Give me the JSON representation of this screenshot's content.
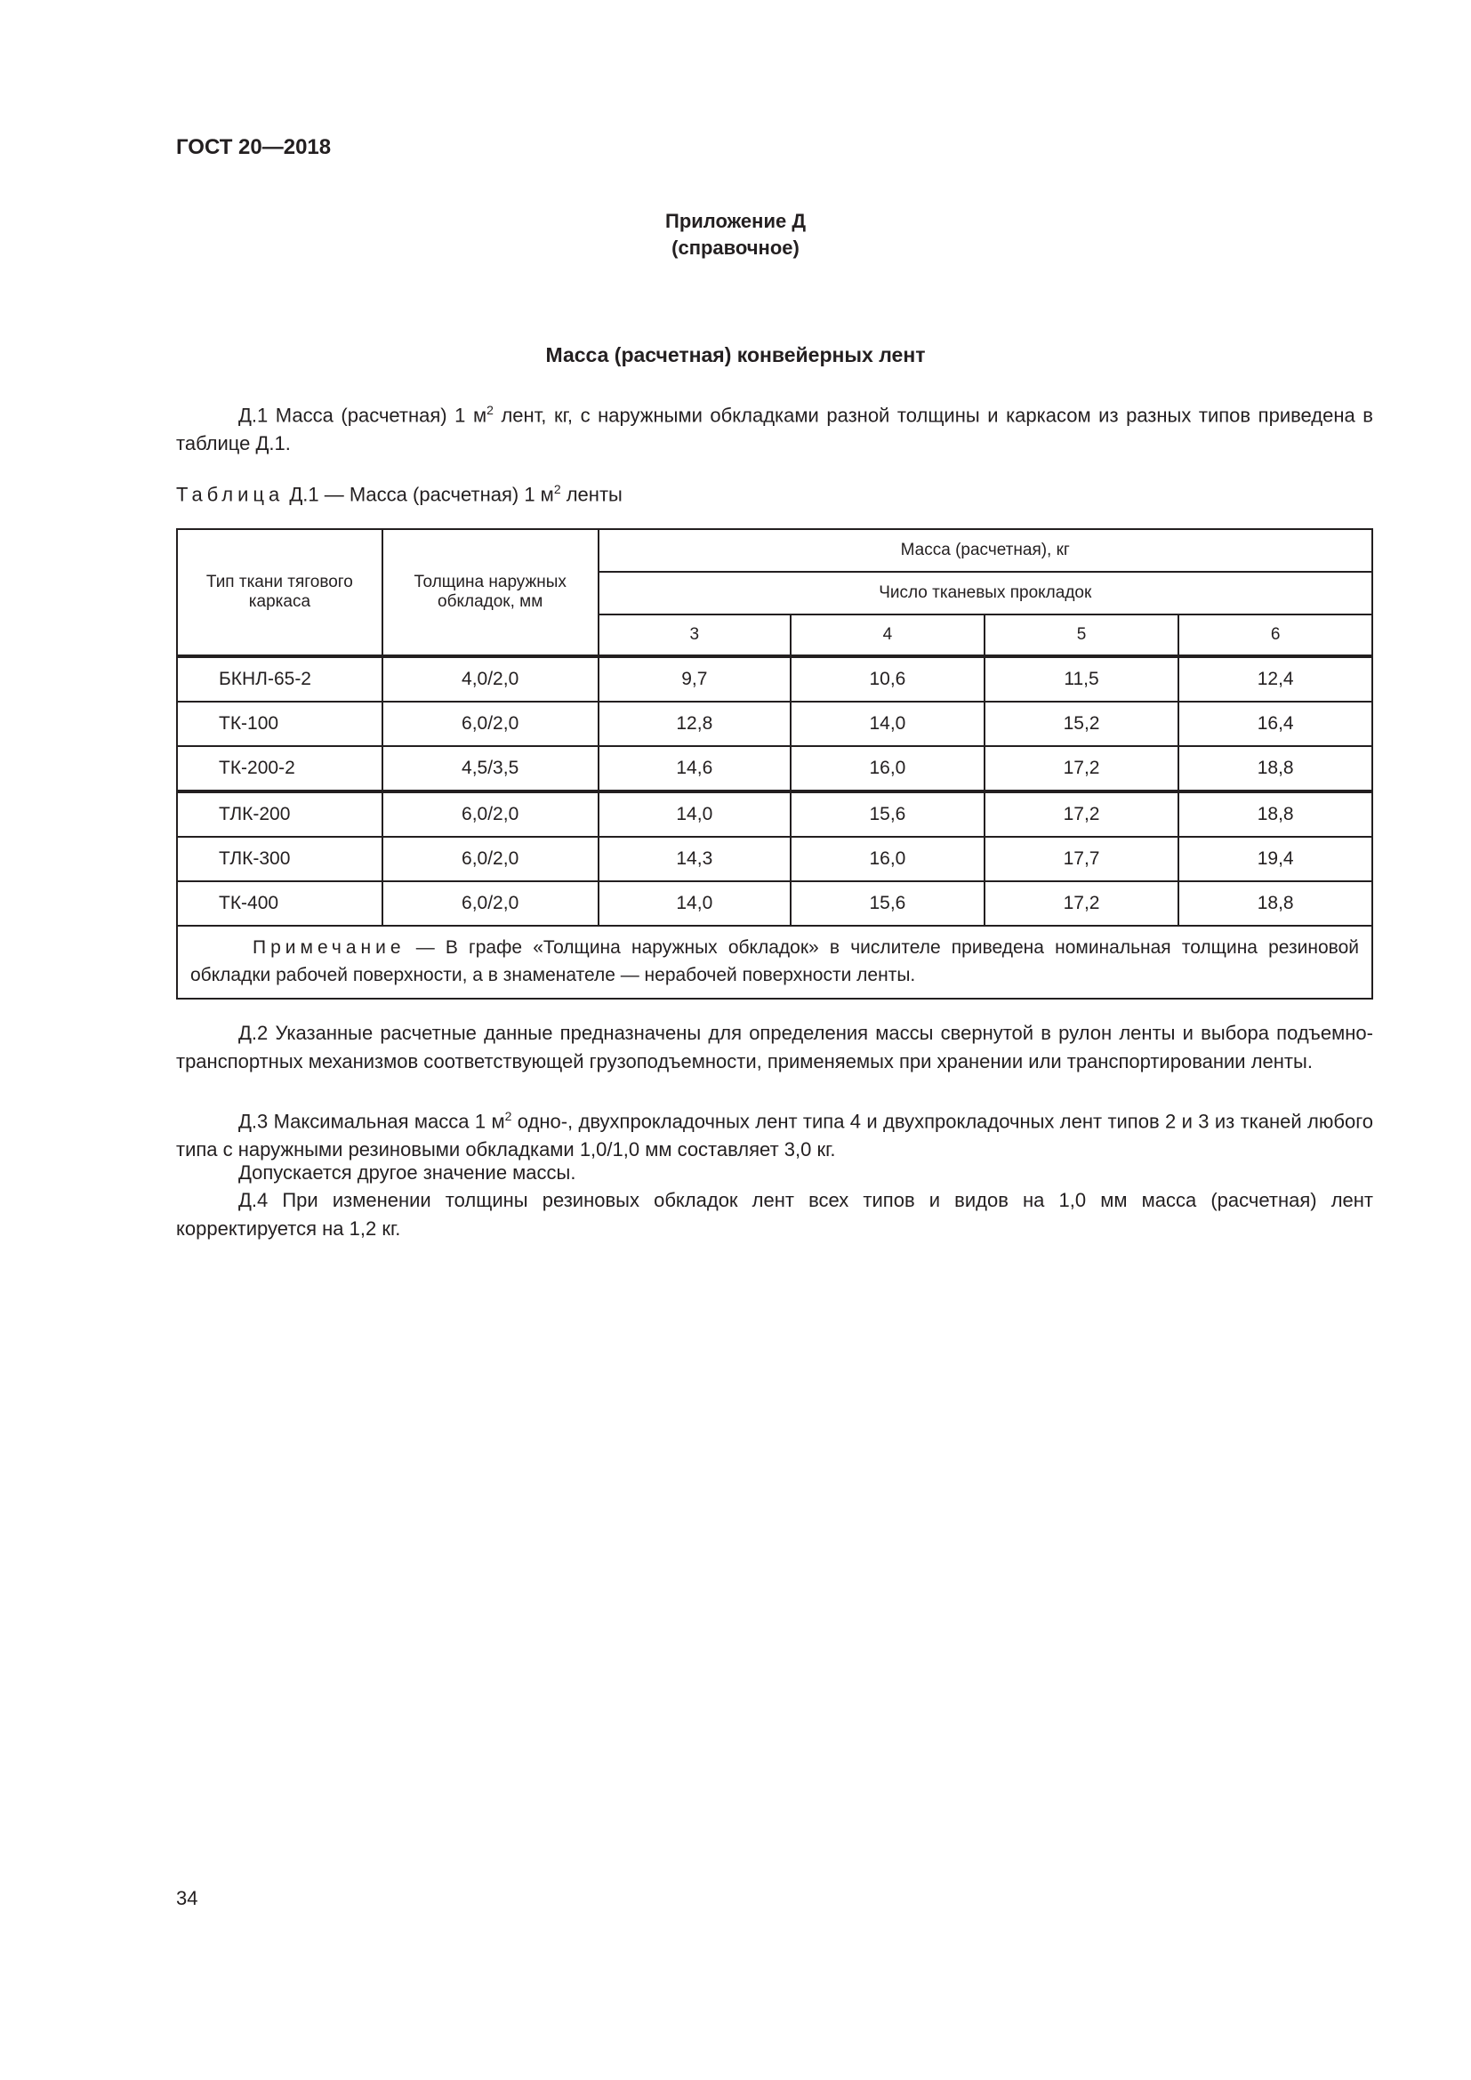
{
  "header": {
    "standard": "ГОСТ 20—2018"
  },
  "appendix": {
    "title": "Приложение Д",
    "subtitle": "(справочное)"
  },
  "section_title": "Масса (расчетная) конвейерных лент",
  "d1": {
    "pre": "Д.1  Масса (расчетная) 1 м",
    "sup": "2",
    "post": " лент, кг, с наружными обкладками разной толщины и каркасом из разных типов приведена в таблице Д.1."
  },
  "table_caption": {
    "label": "Таблица",
    "pre": " Д.1 — Масса (расчетная) 1 м",
    "sup": "2",
    "post": " ленты"
  },
  "table": {
    "col_type": "Тип ткани тягового каркаса",
    "col_thickness": "Толщина наружных обкладок, мм",
    "col_mass": "Масса (расчетная), кг",
    "col_plies": "Число тканевых прокладок",
    "ply_counts": [
      "3",
      "4",
      "5",
      "6"
    ],
    "rows": [
      {
        "type": "БКНЛ-65-2",
        "thickness": "4,0/2,0",
        "values": [
          "9,7",
          "10,6",
          "11,5",
          "12,4"
        ]
      },
      {
        "type": "ТК-100",
        "thickness": "6,0/2,0",
        "values": [
          "12,8",
          "14,0",
          "15,2",
          "16,4"
        ]
      },
      {
        "type": "ТК-200-2",
        "thickness": "4,5/3,5",
        "values": [
          "14,6",
          "16,0",
          "17,2",
          "18,8"
        ]
      },
      {
        "type": "ТЛК-200",
        "thickness": "6,0/2,0",
        "values": [
          "14,0",
          "15,6",
          "17,2",
          "18,8"
        ]
      },
      {
        "type": "ТЛК-300",
        "thickness": "6,0/2,0",
        "values": [
          "14,3",
          "16,0",
          "17,7",
          "19,4"
        ]
      },
      {
        "type": "ТК-400",
        "thickness": "6,0/2,0",
        "values": [
          "14,0",
          "15,6",
          "17,2",
          "18,8"
        ]
      }
    ],
    "note_label": "Примечание",
    "note_text": " — В графе «Толщина наружных обкладок» в числителе приведена номинальная толщина резиновой обкладки рабочей поверхности, а в знаменателе — нерабочей поверхности ленты."
  },
  "d2": "Д.2  Указанные расчетные данные предназначены для определения массы свернутой в рулон ленты и выбора подъемно-транспортных механизмов соответствующей грузоподъемности, применяемых при хранении или транспортировании ленты.",
  "d3": {
    "pre": "Д.3  Максимальная масса 1 м",
    "sup": "2",
    "post": " одно-, двухпрокладочных лент типа 4 и двухпрокладочных лент типов 2 и 3 из тканей любого типа с наружными резиновыми обкладками 1,0/1,0 мм составляет 3,0 кг."
  },
  "d3_extra": "Допускается другое значение массы.",
  "d4": "Д.4  При изменении толщины резиновых обкладок лент всех типов и видов на 1,0 мм масса (расчетная) лент корректируется на 1,2 кг.",
  "page_number": "34"
}
